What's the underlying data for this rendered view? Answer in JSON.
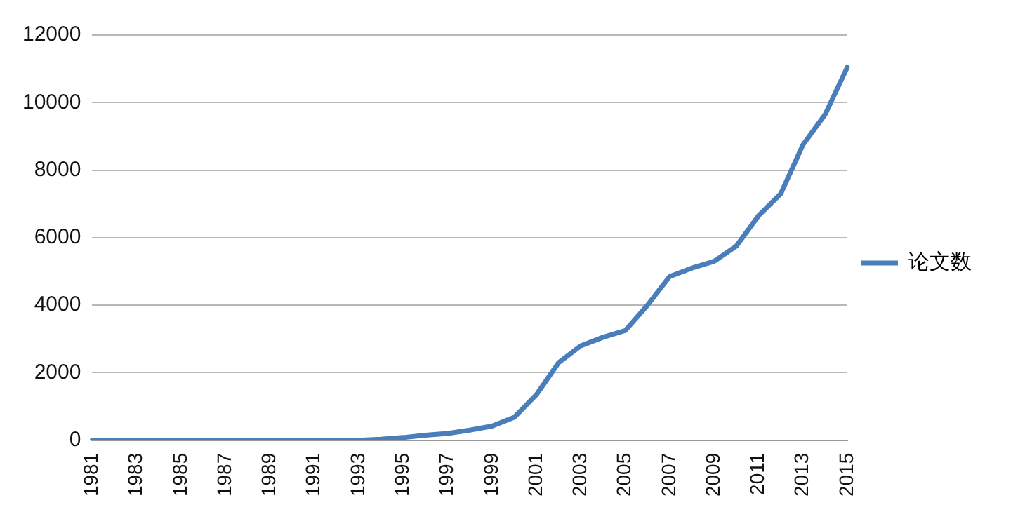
{
  "chart_data": {
    "type": "line",
    "categories": [
      "1981",
      null,
      "1983",
      null,
      "1985",
      null,
      "1987",
      null,
      "1989",
      null,
      "1991",
      null,
      "1993",
      null,
      "1995",
      null,
      "1997",
      null,
      "1999",
      null,
      "2001",
      null,
      "2003",
      null,
      "2005",
      null,
      "2007",
      null,
      "2009",
      null,
      "2011",
      null,
      "2013",
      null,
      "2015"
    ],
    "series": [
      {
        "name": "论文数",
        "color": "#4a7ebb",
        "values": [
          0,
          0,
          0,
          0,
          0,
          0,
          0,
          0,
          0,
          0,
          0,
          0,
          0,
          30,
          80,
          150,
          200,
          300,
          420,
          680,
          1350,
          2300,
          2800,
          3050,
          3250,
          4000,
          4850,
          5100,
          5300,
          5750,
          6650,
          7300,
          8750,
          9650,
          11050
        ]
      }
    ],
    "ylim": [
      0,
      12000
    ],
    "yticks": [
      0,
      2000,
      4000,
      6000,
      8000,
      10000,
      12000
    ],
    "grid": "y",
    "legend": "right",
    "marker": "none",
    "line_style": "solid"
  }
}
